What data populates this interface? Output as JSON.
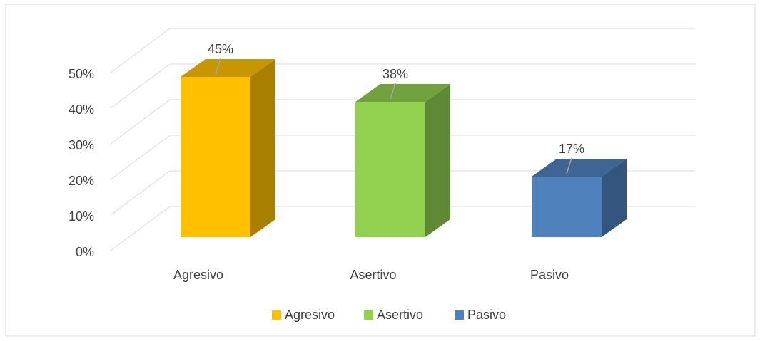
{
  "chart_data": {
    "type": "bar3d",
    "categories": [
      "Agresivo",
      "Asertivo",
      "Pasivo"
    ],
    "values": [
      45,
      38,
      17
    ],
    "value_labels": [
      "45%",
      "38%",
      "17%"
    ],
    "colors": [
      "#ffc000",
      "#92d050",
      "#4f81bd"
    ],
    "ylim": [
      0,
      50
    ],
    "yticks": [
      {
        "value": 0,
        "label": "0%"
      },
      {
        "value": 10,
        "label": "10%"
      },
      {
        "value": 20,
        "label": "20%"
      },
      {
        "value": 30,
        "label": "30%"
      },
      {
        "value": 40,
        "label": "40%"
      },
      {
        "value": 50,
        "label": "50%"
      }
    ],
    "grid": true,
    "legend": "bottom"
  }
}
